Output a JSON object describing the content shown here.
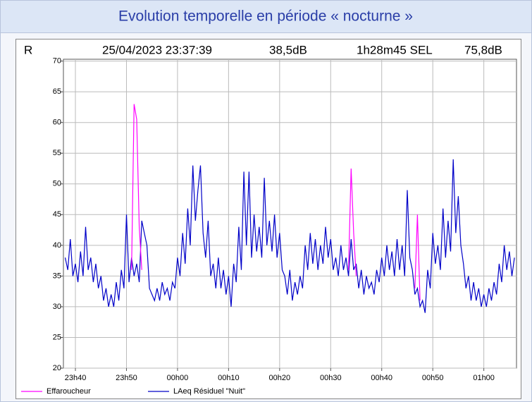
{
  "chart_data": {
    "type": "line",
    "title": "Evolution temporelle en période « nocturne »",
    "annotations": [
      "R",
      "25/04/2023 23:37:39",
      "38,5dB",
      "1h28m45 SEL",
      "75,8dB"
    ],
    "x": [
      1418,
      1418.5,
      1419,
      1419.5,
      1420,
      1420.5,
      1421,
      1421.5,
      1422,
      1422.5,
      1423,
      1423.5,
      1424,
      1424.5,
      1425,
      1425.5,
      1426,
      1426.5,
      1427,
      1427.5,
      1428,
      1428.5,
      1429,
      1429.5,
      1430,
      1430.5,
      1431,
      1431.5,
      1432,
      1432.5,
      1433,
      1433.5,
      1434,
      1434.5,
      1435,
      1435.5,
      1436,
      1436.5,
      1437,
      1437.5,
      1438,
      1438.5,
      1439,
      1439.5,
      1440,
      1440.5,
      1441,
      1441.5,
      1442,
      1442.5,
      1443,
      1443.5,
      1444,
      1444.5,
      1445,
      1445.5,
      1446,
      1446.5,
      1447,
      1447.5,
      1448,
      1448.5,
      1449,
      1449.5,
      1450,
      1450.5,
      1451,
      1451.5,
      1452,
      1452.5,
      1453,
      1453.5,
      1454,
      1454.5,
      1455,
      1455.5,
      1456,
      1456.5,
      1457,
      1457.5,
      1458,
      1458.5,
      1459,
      1459.5,
      1460,
      1460.5,
      1461,
      1461.5,
      1462,
      1462.5,
      1463,
      1463.5,
      1464,
      1464.5,
      1465,
      1465.5,
      1466,
      1466.5,
      1467,
      1467.5,
      1468,
      1468.5,
      1469,
      1469.5,
      1470,
      1470.5,
      1471,
      1471.5,
      1472,
      1472.5,
      1473,
      1473.5,
      1474,
      1474.5,
      1475,
      1475.5,
      1476,
      1476.5,
      1477,
      1477.5,
      1478,
      1478.5,
      1479,
      1479.5,
      1480,
      1480.5,
      1481,
      1481.5,
      1482,
      1482.5,
      1483,
      1483.5,
      1484,
      1484.5,
      1485,
      1485.5,
      1486,
      1486.5,
      1487,
      1487.5,
      1488,
      1488.5,
      1489,
      1489.5,
      1490,
      1490.5,
      1491,
      1491.5,
      1492,
      1492.5,
      1493,
      1493.5,
      1494,
      1494.5,
      1495,
      1495.5,
      1496,
      1496.5,
      1497,
      1497.5,
      1498,
      1498.5,
      1499,
      1499.5,
      1500,
      1500.5,
      1501,
      1501.5,
      1502,
      1502.5,
      1503,
      1503.5,
      1504,
      1504.5,
      1505,
      1505.5,
      1506
    ],
    "series": [
      {
        "name": "Effaroucheur",
        "color": "#ff00ff",
        "values": [
          null,
          null,
          null,
          null,
          null,
          null,
          null,
          null,
          null,
          null,
          null,
          null,
          null,
          null,
          null,
          null,
          null,
          null,
          null,
          null,
          null,
          null,
          null,
          null,
          null,
          null,
          36,
          63,
          60.5,
          43,
          36,
          null,
          null,
          null,
          null,
          null,
          null,
          null,
          null,
          null,
          null,
          null,
          null,
          null,
          null,
          null,
          null,
          null,
          null,
          null,
          null,
          null,
          null,
          null,
          null,
          null,
          null,
          null,
          null,
          null,
          null,
          null,
          null,
          null,
          null,
          null,
          null,
          null,
          null,
          null,
          null,
          null,
          null,
          null,
          null,
          null,
          null,
          null,
          null,
          null,
          null,
          null,
          null,
          null,
          null,
          null,
          null,
          null,
          null,
          null,
          null,
          null,
          null,
          null,
          null,
          null,
          null,
          null,
          null,
          null,
          null,
          null,
          null,
          null,
          null,
          null,
          null,
          null,
          null,
          null,
          null,
          36,
          52.5,
          42,
          35,
          null,
          null,
          null,
          null,
          null,
          null,
          null,
          null,
          null,
          null,
          null,
          null,
          null,
          null,
          null,
          null,
          null,
          null,
          null,
          null,
          null,
          null,
          33,
          45,
          31,
          null,
          null,
          null,
          null,
          null,
          null,
          null,
          null,
          null,
          null,
          null,
          null,
          null,
          null,
          null,
          null,
          null,
          null,
          null,
          null,
          null,
          null,
          null,
          null,
          null,
          null,
          null,
          null,
          null,
          null,
          null,
          null,
          null,
          null,
          null,
          null,
          null
        ]
      },
      {
        "name": "LAeq Résiduel \"Nuit\"",
        "color": "#0000c8",
        "values": [
          38,
          36,
          41,
          35,
          37,
          34,
          39,
          35,
          43,
          36,
          38,
          34,
          37,
          33,
          35,
          31,
          33,
          30,
          32,
          30,
          34,
          31,
          36,
          33,
          45,
          34,
          38,
          35,
          37,
          34,
          44,
          42,
          40,
          33,
          32,
          31,
          33,
          31,
          34,
          32,
          33,
          31,
          34,
          33,
          38,
          35,
          42,
          37,
          46,
          40,
          53,
          44,
          49,
          53,
          42,
          38,
          44,
          35,
          37,
          33,
          38,
          33,
          36,
          32,
          35,
          30,
          37,
          34,
          43,
          36,
          52,
          40,
          52,
          38,
          45,
          39,
          43,
          38,
          51,
          40,
          44,
          39,
          45,
          38,
          42,
          36,
          35,
          32,
          36,
          31,
          34,
          32,
          35,
          33,
          40,
          36,
          42,
          37,
          41,
          36,
          40,
          37,
          43,
          38,
          41,
          36,
          38,
          35,
          40,
          36,
          38,
          35,
          41,
          36,
          37,
          33,
          36,
          32,
          35,
          33,
          34,
          32,
          36,
          34,
          38,
          35,
          40,
          36,
          39,
          35,
          41,
          36,
          40,
          35,
          49,
          38,
          36,
          32,
          33,
          30,
          31,
          29,
          36,
          33,
          42,
          37,
          40,
          36,
          46,
          38,
          44,
          39,
          54,
          42,
          48,
          40,
          37,
          33,
          35,
          31,
          34,
          31,
          33,
          30,
          32,
          30,
          33,
          31,
          34,
          32,
          37,
          34,
          40,
          36,
          39,
          35,
          38
        ]
      }
    ],
    "xlim": [
      1417.65,
      1506.4
    ],
    "xticks": [
      {
        "value": 1420,
        "label": "23h40"
      },
      {
        "value": 1430,
        "label": "23h50"
      },
      {
        "value": 1440,
        "label": "00h00"
      },
      {
        "value": 1450,
        "label": "00h10"
      },
      {
        "value": 1460,
        "label": "00h20"
      },
      {
        "value": 1470,
        "label": "00h30"
      },
      {
        "value": 1480,
        "label": "00h40"
      },
      {
        "value": 1490,
        "label": "00h50"
      },
      {
        "value": 1500,
        "label": "01h00"
      }
    ],
    "ylim": [
      20,
      70.3
    ],
    "yticks": [
      20,
      25,
      30,
      35,
      40,
      45,
      50,
      55,
      60,
      65,
      70
    ],
    "grid": true
  }
}
